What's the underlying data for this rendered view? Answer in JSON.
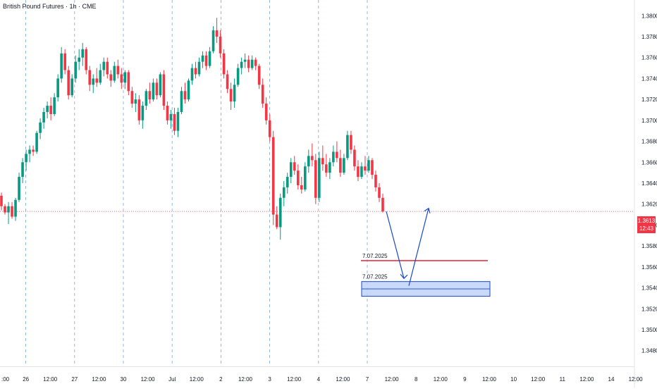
{
  "header": {
    "title": "British Pound Futures · 1h · CME"
  },
  "last_price": {
    "price": "1.3613",
    "countdown": "12:43"
  },
  "colors": {
    "up": "#089981",
    "down": "#f23645",
    "drawing": "#1848cc",
    "zone_fill": "#bbd0f7",
    "level_line": "#e23645",
    "grid_day": "#5b8fd6"
  },
  "chart_data": {
    "type": "candlestick",
    "title": "British Pound Futures · 1h · CME",
    "ylim": [
      1.3465,
      1.3815
    ],
    "y_ticks": [
      "1.3480",
      "1.3500",
      "1.3520",
      "1.3540",
      "1.3560",
      "1.3580",
      "1.3600",
      "1.3620",
      "1.3640",
      "1.3660",
      "1.3680",
      "1.3700",
      "1.3720",
      "1.3740",
      "1.3760",
      "1.3780",
      "1.3800"
    ],
    "x_ticks": [
      ":00",
      "26",
      "12:00",
      "27",
      "12:00",
      "30",
      "12:00",
      "Jul",
      "12:00",
      "2",
      "12:00",
      "3",
      "12:00",
      "4",
      "12:00",
      "7",
      "12:00",
      "8",
      "12:00",
      "9",
      "12:00",
      "10",
      "12:00",
      "11",
      "12:00",
      "14",
      "12:00"
    ],
    "candles": [
      [
        1.3628,
        1.3631,
        1.3614,
        1.3618
      ],
      [
        1.3618,
        1.362,
        1.361,
        1.3612
      ],
      [
        1.3612,
        1.3622,
        1.3601,
        1.3618
      ],
      [
        1.3618,
        1.3622,
        1.3606,
        1.3608
      ],
      [
        1.3608,
        1.3626,
        1.3604,
        1.3624
      ],
      [
        1.3624,
        1.365,
        1.3622,
        1.3646
      ],
      [
        1.3646,
        1.3664,
        1.364,
        1.366
      ],
      [
        1.366,
        1.3672,
        1.3652,
        1.3668
      ],
      [
        1.3668,
        1.3676,
        1.366,
        1.3672
      ],
      [
        1.3672,
        1.3676,
        1.3666,
        1.367
      ],
      [
        1.367,
        1.369,
        1.3668,
        1.3688
      ],
      [
        1.3688,
        1.3702,
        1.3682,
        1.3698
      ],
      [
        1.3698,
        1.3712,
        1.3692,
        1.3708
      ],
      [
        1.3708,
        1.3718,
        1.3702,
        1.3714
      ],
      [
        1.3714,
        1.3722,
        1.37,
        1.3706
      ],
      [
        1.3706,
        1.3726,
        1.3704,
        1.3722
      ],
      [
        1.3722,
        1.3744,
        1.3718,
        1.374
      ],
      [
        1.374,
        1.377,
        1.3736,
        1.3764
      ],
      [
        1.3764,
        1.3768,
        1.3744,
        1.3748
      ],
      [
        1.3748,
        1.3752,
        1.372,
        1.3724
      ],
      [
        1.3724,
        1.3744,
        1.3722,
        1.374
      ],
      [
        1.374,
        1.3762,
        1.3736,
        1.3756
      ],
      [
        1.3756,
        1.3768,
        1.3748,
        1.376
      ],
      [
        1.376,
        1.3774,
        1.3752,
        1.3768
      ],
      [
        1.3768,
        1.377,
        1.3744,
        1.3748
      ],
      [
        1.3748,
        1.3752,
        1.3728,
        1.3734
      ],
      [
        1.3734,
        1.3744,
        1.3726,
        1.374
      ],
      [
        1.374,
        1.375,
        1.3732,
        1.3736
      ],
      [
        1.3736,
        1.3754,
        1.3734,
        1.3748
      ],
      [
        1.3748,
        1.376,
        1.3742,
        1.3756
      ],
      [
        1.3756,
        1.376,
        1.374,
        1.3744
      ],
      [
        1.3744,
        1.3748,
        1.3732,
        1.3738
      ],
      [
        1.3738,
        1.3756,
        1.3736,
        1.3752
      ],
      [
        1.3752,
        1.3758,
        1.374,
        1.3744
      ],
      [
        1.3744,
        1.375,
        1.373,
        1.3736
      ],
      [
        1.3736,
        1.3748,
        1.373,
        1.3746
      ],
      [
        1.3746,
        1.3748,
        1.3724,
        1.3728
      ],
      [
        1.3728,
        1.3732,
        1.3712,
        1.3716
      ],
      [
        1.3716,
        1.3726,
        1.3708,
        1.372
      ],
      [
        1.372,
        1.3724,
        1.3696,
        1.37
      ],
      [
        1.37,
        1.3718,
        1.3692,
        1.3714
      ],
      [
        1.3714,
        1.373,
        1.371,
        1.3728
      ],
      [
        1.3728,
        1.3736,
        1.3716,
        1.372
      ],
      [
        1.372,
        1.374,
        1.3718,
        1.3736
      ],
      [
        1.3736,
        1.374,
        1.372,
        1.3724
      ],
      [
        1.3724,
        1.3746,
        1.3722,
        1.3744
      ],
      [
        1.3744,
        1.3748,
        1.371,
        1.3714
      ],
      [
        1.3714,
        1.3718,
        1.3696,
        1.37
      ],
      [
        1.37,
        1.371,
        1.3692,
        1.3706
      ],
      [
        1.3706,
        1.3712,
        1.3686,
        1.369
      ],
      [
        1.369,
        1.3712,
        1.3684,
        1.3708
      ],
      [
        1.3708,
        1.3732,
        1.3706,
        1.3728
      ],
      [
        1.3728,
        1.3736,
        1.3716,
        1.372
      ],
      [
        1.372,
        1.374,
        1.3718,
        1.3738
      ],
      [
        1.3738,
        1.3754,
        1.3734,
        1.375
      ],
      [
        1.375,
        1.3756,
        1.374,
        1.3744
      ],
      [
        1.3744,
        1.376,
        1.3742,
        1.3756
      ],
      [
        1.3756,
        1.3766,
        1.375,
        1.3762
      ],
      [
        1.3762,
        1.3766,
        1.3748,
        1.3752
      ],
      [
        1.3752,
        1.377,
        1.375,
        1.3766
      ],
      [
        1.3766,
        1.379,
        1.3764,
        1.3786
      ],
      [
        1.3786,
        1.3798,
        1.3774,
        1.378
      ],
      [
        1.378,
        1.3786,
        1.376,
        1.3764
      ],
      [
        1.3764,
        1.3768,
        1.374,
        1.3744
      ],
      [
        1.3744,
        1.3748,
        1.3726,
        1.373
      ],
      [
        1.373,
        1.3736,
        1.371,
        1.3718
      ],
      [
        1.3718,
        1.374,
        1.3712,
        1.3734
      ],
      [
        1.3734,
        1.3754,
        1.3732,
        1.375
      ],
      [
        1.375,
        1.376,
        1.3744,
        1.3756
      ],
      [
        1.3756,
        1.3764,
        1.375,
        1.3758
      ],
      [
        1.3758,
        1.3762,
        1.3746,
        1.375
      ],
      [
        1.375,
        1.3762,
        1.3748,
        1.3758
      ],
      [
        1.3758,
        1.376,
        1.3748,
        1.3752
      ],
      [
        1.3752,
        1.3754,
        1.373,
        1.3734
      ],
      [
        1.3734,
        1.374,
        1.3712,
        1.3716
      ],
      [
        1.3716,
        1.3722,
        1.3696,
        1.37
      ],
      [
        1.37,
        1.3706,
        1.368,
        1.3684
      ],
      [
        1.3684,
        1.369,
        1.36,
        1.361
      ],
      [
        1.361,
        1.3618,
        1.3596,
        1.3598
      ],
      [
        1.3598,
        1.363,
        1.3586,
        1.3626
      ],
      [
        1.3626,
        1.3642,
        1.3618,
        1.3636
      ],
      [
        1.3636,
        1.365,
        1.363,
        1.3646
      ],
      [
        1.3646,
        1.3664,
        1.364,
        1.366
      ],
      [
        1.366,
        1.3666,
        1.3648,
        1.3652
      ],
      [
        1.3652,
        1.3658,
        1.3634,
        1.3638
      ],
      [
        1.3638,
        1.3646,
        1.363,
        1.3634
      ],
      [
        1.3634,
        1.366,
        1.3632,
        1.3656
      ],
      [
        1.3656,
        1.3672,
        1.365,
        1.3666
      ],
      [
        1.3666,
        1.3678,
        1.3656,
        1.3662
      ],
      [
        1.3662,
        1.3668,
        1.362,
        1.3626
      ],
      [
        1.3626,
        1.367,
        1.3622,
        1.3664
      ],
      [
        1.3664,
        1.3676,
        1.3652,
        1.3658
      ],
      [
        1.3658,
        1.3668,
        1.3646,
        1.365
      ],
      [
        1.365,
        1.3664,
        1.3644,
        1.366
      ],
      [
        1.366,
        1.3676,
        1.3656,
        1.367
      ],
      [
        1.367,
        1.368,
        1.366,
        1.3664
      ],
      [
        1.3664,
        1.3672,
        1.3646,
        1.365
      ],
      [
        1.365,
        1.3668,
        1.3648,
        1.3664
      ],
      [
        1.3664,
        1.369,
        1.3662,
        1.3686
      ],
      [
        1.3686,
        1.369,
        1.3668,
        1.3672
      ],
      [
        1.3672,
        1.3676,
        1.3652,
        1.3656
      ],
      [
        1.3656,
        1.3662,
        1.3642,
        1.3646
      ],
      [
        1.3646,
        1.366,
        1.3644,
        1.3656
      ],
      [
        1.3656,
        1.3666,
        1.3648,
        1.3652
      ],
      [
        1.3652,
        1.3666,
        1.365,
        1.3662
      ],
      [
        1.3662,
        1.3664,
        1.3644,
        1.3648
      ],
      [
        1.3648,
        1.3652,
        1.3632,
        1.3636
      ],
      [
        1.3636,
        1.364,
        1.3622,
        1.3626
      ],
      [
        1.3626,
        1.363,
        1.3612,
        1.3613
      ]
    ],
    "annotations": [
      {
        "label": "7.07.2025",
        "kind": "horizontal-line",
        "price": 1.3566
      },
      {
        "label": "7.07.2025",
        "kind": "zone",
        "price_top": 1.3546,
        "price_bottom": 1.3532,
        "mid_price": 1.3539
      }
    ],
    "last_price": 1.3613
  }
}
